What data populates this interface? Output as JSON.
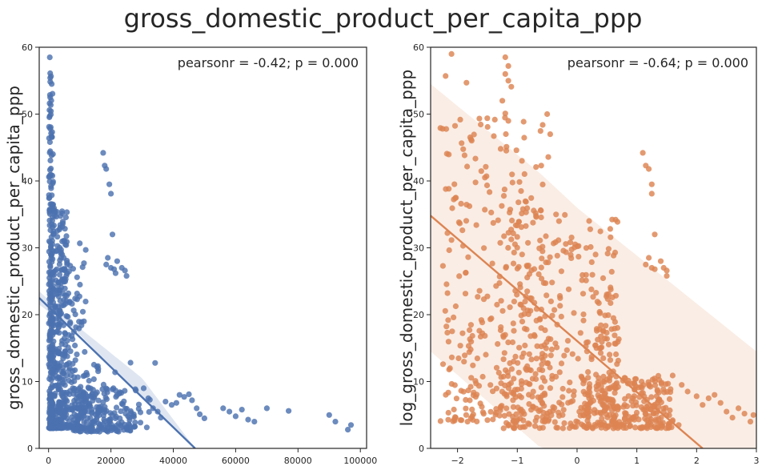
{
  "figure": {
    "title": "gross_domestic_product_per_capita_ppp"
  },
  "chart_data": [
    {
      "type": "scatter",
      "ylabel": "gross_domestic_product_per_capita_ppp",
      "xlabel": "",
      "annotation": "pearsonr = -0.42; p = 0.000",
      "xlim": [
        -3000,
        102000
      ],
      "ylim": [
        0,
        60
      ],
      "xticks": [
        0,
        20000,
        40000,
        60000,
        80000,
        100000
      ],
      "xtick_labels": [
        "0",
        "20000",
        "40000",
        "60000",
        "80000",
        "100000"
      ],
      "yticks": [
        0,
        10,
        20,
        30,
        40,
        50,
        60
      ],
      "ytick_labels": [
        "0",
        "10",
        "20",
        "30",
        "40",
        "50",
        "60"
      ],
      "color": "#4c72b0",
      "fit_line": {
        "x": [
          -3000,
          47000
        ],
        "y": [
          22.5,
          0.0
        ]
      },
      "ci_band": {
        "x": [
          -3000,
          10000,
          30000,
          47000
        ],
        "upper": [
          23.5,
          18.0,
          10.5,
          0.0
        ],
        "lower": [
          21.5,
          17.0,
          7.5,
          0.0
        ]
      },
      "clusters": [
        {
          "x_min": 100,
          "x_max": 1500,
          "y_min": 3,
          "y_max": 59,
          "n": 220
        },
        {
          "x_min": 500,
          "x_max": 6000,
          "y_min": 3,
          "y_max": 36,
          "n": 260
        },
        {
          "x_min": 3000,
          "x_max": 12000,
          "y_min": 3,
          "y_max": 31,
          "n": 180
        },
        {
          "x_min": 8000,
          "x_max": 28000,
          "y_min": 2.5,
          "y_max": 9,
          "n": 190
        },
        {
          "x_min": 12000,
          "x_max": 35000,
          "y_min": 3,
          "y_max": 13,
          "n": 50
        }
      ],
      "points": [
        [
          17500,
          44.2
        ],
        [
          18000,
          42.3
        ],
        [
          18500,
          41.8
        ],
        [
          19500,
          39.5
        ],
        [
          20000,
          38.1
        ],
        [
          20500,
          32.0
        ],
        [
          19000,
          28.5
        ],
        [
          18500,
          27.5
        ],
        [
          20000,
          27.0
        ],
        [
          21000,
          26.8
        ],
        [
          22000,
          28.0
        ],
        [
          23500,
          27.0
        ],
        [
          24500,
          26.6
        ],
        [
          25000,
          25.8
        ],
        [
          21500,
          26.2
        ],
        [
          30500,
          9.0
        ],
        [
          32000,
          7.5
        ],
        [
          33500,
          6.0
        ],
        [
          35000,
          5.5
        ],
        [
          36000,
          4.6
        ],
        [
          37500,
          7.0
        ],
        [
          39500,
          6.5
        ],
        [
          41000,
          6.8
        ],
        [
          42000,
          8.0
        ],
        [
          43500,
          7.7
        ],
        [
          45000,
          8.1
        ],
        [
          46000,
          7.2
        ],
        [
          47500,
          6.0
        ],
        [
          48500,
          5.1
        ],
        [
          50000,
          4.5
        ],
        [
          56000,
          6.0
        ],
        [
          58000,
          5.5
        ],
        [
          60000,
          4.8
        ],
        [
          62000,
          5.8
        ],
        [
          64000,
          4.3
        ],
        [
          66000,
          4.0
        ],
        [
          70000,
          6.0
        ],
        [
          77000,
          5.6
        ],
        [
          90000,
          5.0
        ],
        [
          92000,
          4.0
        ],
        [
          96000,
          2.8
        ],
        [
          97000,
          3.5
        ]
      ]
    },
    {
      "type": "scatter",
      "ylabel": "log_gross_domestic_product_per_capita_ppp",
      "xlabel": "",
      "annotation": "pearsonr = -0.64; p = 0.000",
      "xlim": [
        -2.45,
        3.0
      ],
      "ylim": [
        0,
        60
      ],
      "xticks": [
        -2,
        -1,
        0,
        1,
        2,
        3
      ],
      "xtick_labels": [
        "−2",
        "−1",
        "0",
        "1",
        "2",
        "3"
      ],
      "yticks": [
        0,
        10,
        20,
        30,
        40,
        50,
        60
      ],
      "ytick_labels": [
        "0",
        "10",
        "20",
        "30",
        "40",
        "50",
        "60"
      ],
      "color": "#dd8452",
      "fit_line": {
        "x": [
          -2.45,
          2.1
        ],
        "y": [
          34.8,
          0.0
        ]
      },
      "ci_band": {
        "x": [
          -2.45,
          -0.6,
          0.0,
          3.0
        ],
        "upper": [
          54.5,
          41.0,
          36.0,
          14.5
        ],
        "lower": [
          14.5,
          0.0,
          0.0,
          0.0
        ]
      },
      "clusters": [
        {
          "x_min": -2.3,
          "x_max": -0.4,
          "y_min": 4,
          "y_max": 50,
          "n": 330
        },
        {
          "x_min": -1.3,
          "x_max": 0.7,
          "y_min": 3,
          "y_max": 35,
          "n": 280
        },
        {
          "x_min": 0.1,
          "x_max": 1.6,
          "y_min": 3,
          "y_max": 11,
          "n": 260
        },
        {
          "x_min": 0.3,
          "x_max": 0.7,
          "y_min": 14,
          "y_max": 30,
          "n": 40
        }
      ],
      "points": [
        [
          -2.1,
          59.0
        ],
        [
          -2.2,
          55.7
        ],
        [
          -1.85,
          54.7
        ],
        [
          -1.2,
          58.5
        ],
        [
          -1.15,
          57.2
        ],
        [
          -1.2,
          56.0
        ],
        [
          -1.15,
          55.0
        ],
        [
          -1.1,
          54.1
        ],
        [
          -1.25,
          52.0
        ],
        [
          -1.2,
          50.1
        ],
        [
          -1.15,
          49.0
        ],
        [
          -2.25,
          47.8
        ],
        [
          -0.5,
          50.0
        ],
        [
          -0.45,
          47.0
        ],
        [
          -0.6,
          42.3
        ],
        [
          1.1,
          44.2
        ],
        [
          1.15,
          42.3
        ],
        [
          1.2,
          41.8
        ],
        [
          1.25,
          39.5
        ],
        [
          1.25,
          38.1
        ],
        [
          1.3,
          32.0
        ],
        [
          1.2,
          28.5
        ],
        [
          1.15,
          27.5
        ],
        [
          1.25,
          27.0
        ],
        [
          1.3,
          26.8
        ],
        [
          1.4,
          28.0
        ],
        [
          1.45,
          27.0
        ],
        [
          1.5,
          26.6
        ],
        [
          1.5,
          25.8
        ],
        [
          1.75,
          9.5
        ],
        [
          1.85,
          8.5
        ],
        [
          2.0,
          7.8
        ],
        [
          2.1,
          6.5
        ],
        [
          2.2,
          7.5
        ],
        [
          2.3,
          8.0
        ],
        [
          2.4,
          6.8
        ],
        [
          2.5,
          5.5
        ],
        [
          2.6,
          4.6
        ],
        [
          2.7,
          6.0
        ],
        [
          2.8,
          5.2
        ],
        [
          2.9,
          4.0
        ],
        [
          2.95,
          5.0
        ],
        [
          1.6,
          4.2
        ],
        [
          1.7,
          3.5
        ]
      ]
    }
  ]
}
